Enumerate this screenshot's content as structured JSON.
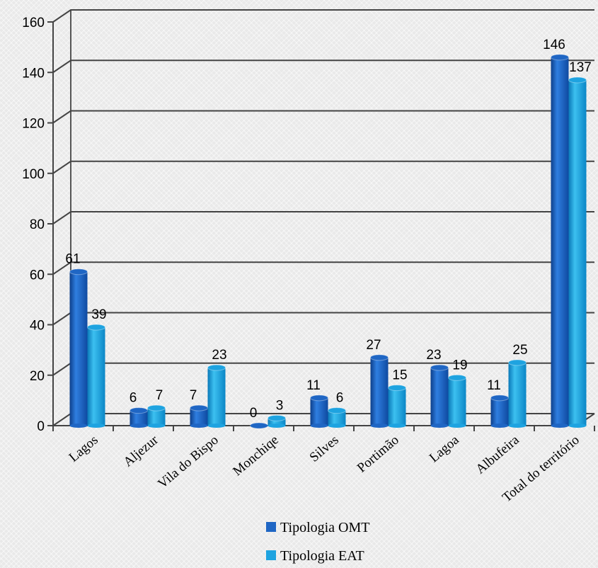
{
  "chart_data": {
    "type": "bar",
    "title": "",
    "xlabel": "",
    "ylabel": "",
    "ylim": [
      0,
      160
    ],
    "yticks": [
      0,
      20,
      40,
      60,
      80,
      100,
      120,
      140,
      160
    ],
    "grid": true,
    "legend_position": "bottom",
    "categories": [
      "Lagos",
      "Aljezur",
      "Vila do Bispo",
      "Monchiqe",
      "Silves",
      "Portimão",
      "Lagoa",
      "Albufeira",
      "Total do território"
    ],
    "series": [
      {
        "name": "Tipologia OMT",
        "color": "#1f66c4",
        "values": [
          61,
          6,
          7,
          0,
          11,
          27,
          23,
          11,
          146
        ]
      },
      {
        "name": "Tipologia EAT",
        "color": "#1ea3e0",
        "values": [
          39,
          7,
          23,
          3,
          6,
          15,
          19,
          25,
          137
        ]
      }
    ]
  }
}
